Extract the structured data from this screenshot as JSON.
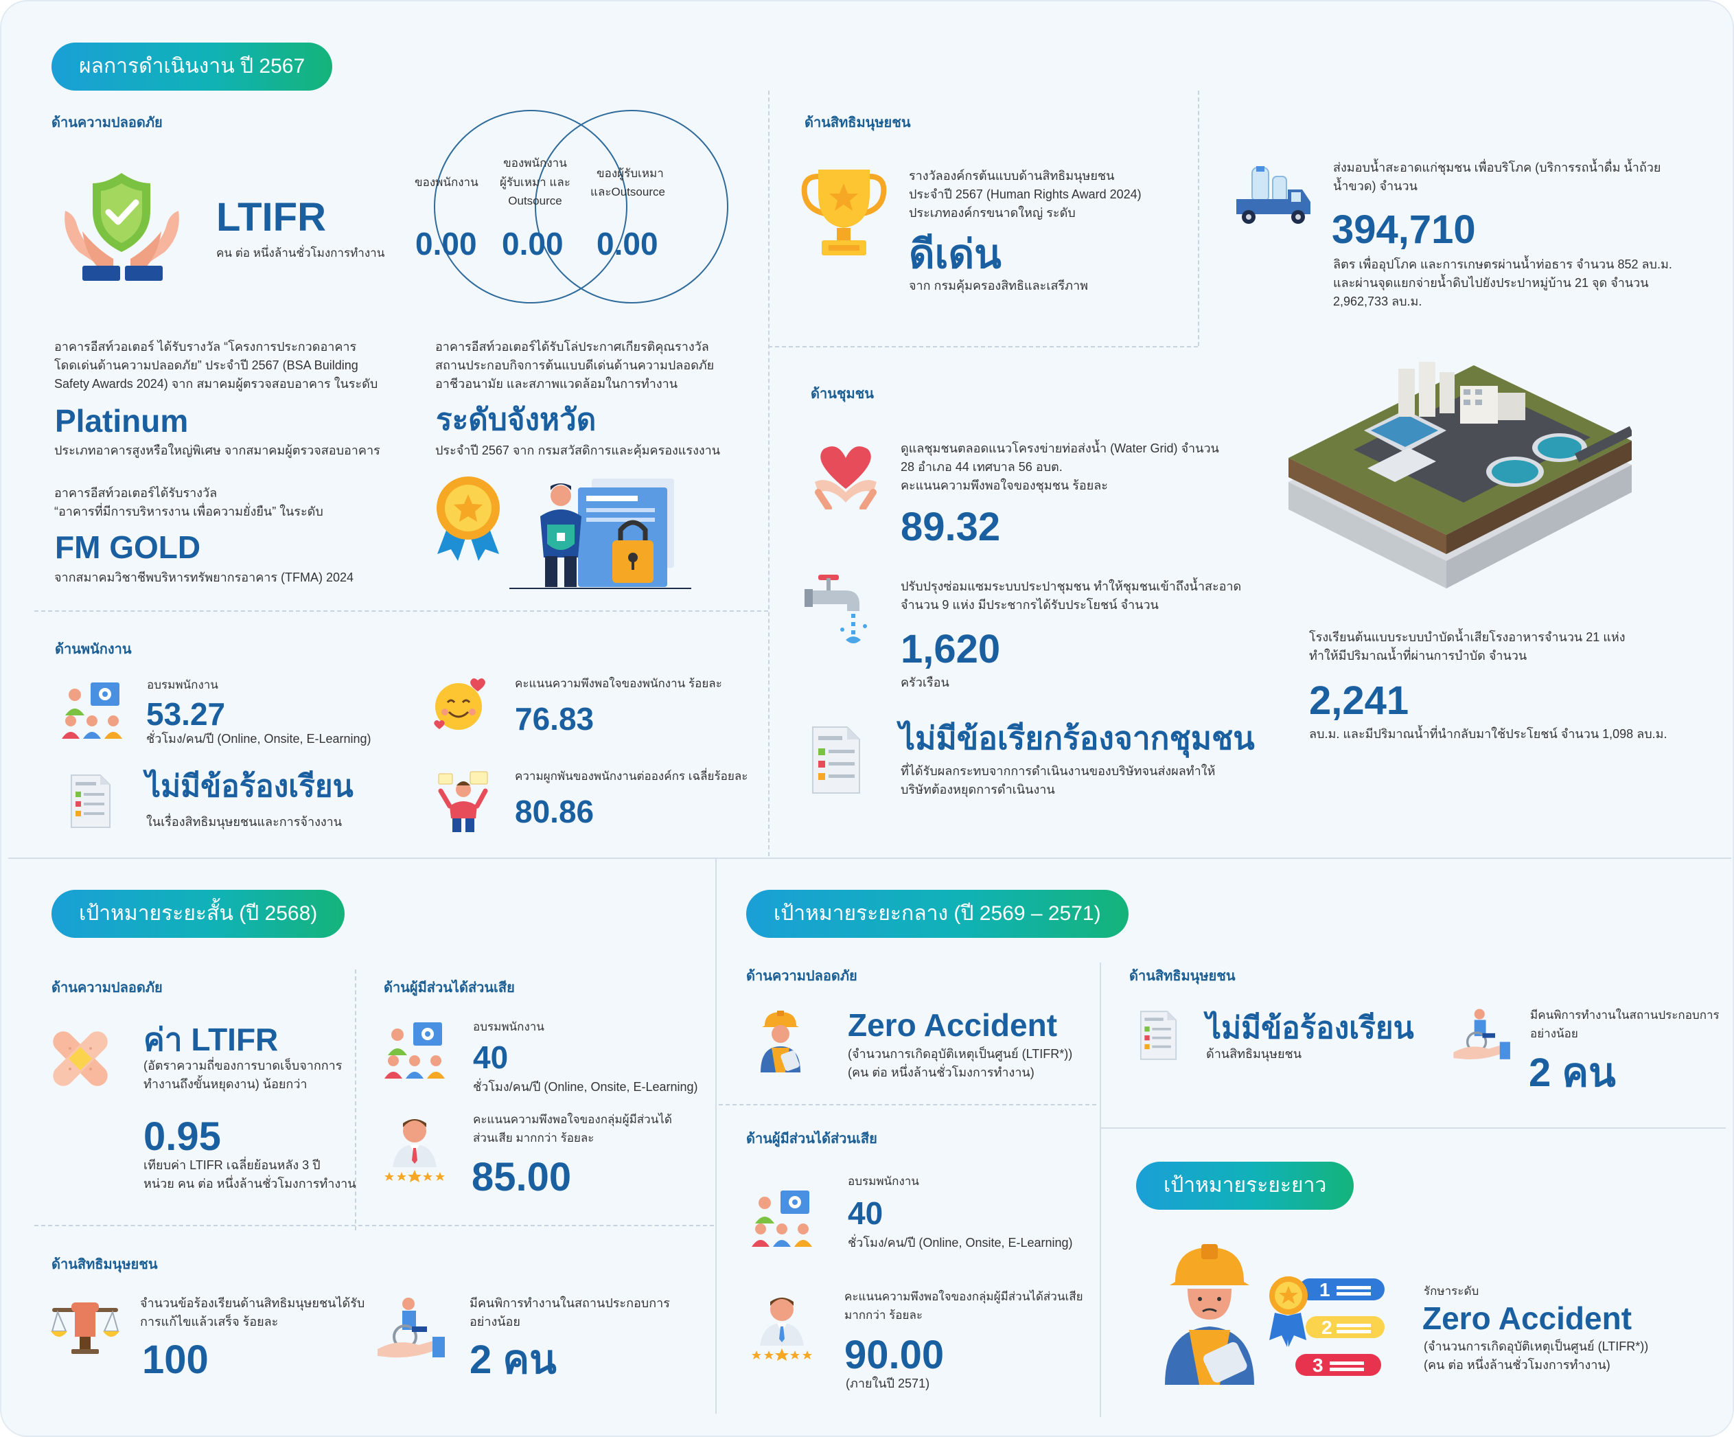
{
  "performance": {
    "title": "ผลการดำเนินงาน ปี 2567",
    "safety": {
      "heading": "ด้านความปลอดภัย",
      "ltifr_label": "LTIFR",
      "ltifr_unit": "คน ต่อ หนึ่งล้านชั่วโมงการทำงาน",
      "venn": {
        "left_label": "ของพนักงาน",
        "mid_label_1": "ของพนักงาน",
        "mid_label_2": "ผู้รับเหมา และ",
        "mid_label_3": "Outsource",
        "right_label_1": "ของผู้รับเหมา",
        "right_label_2": "และOutsource",
        "left_value": "0.00",
        "mid_value": "0.00",
        "right_value": "0.00"
      },
      "award1_desc_1": "อาคารอีสท์วอเตอร์ ได้รับรางวัล “โครงการประกวดอาคาร",
      "award1_desc_2": "โดดเด่นด้านความปลอดภัย” ประจำปี 2567 (BSA Building",
      "award1_desc_3": "Safety Awards 2024) จาก สมาคมผู้ตรวจสอบอาคาร ในระดับ",
      "award1_level": "Platinum",
      "award1_note": "ประเภทอาคารสูงหรือใหญ่พิเศษ จากสมาคมผู้ตรวจสอบอาคาร",
      "award2_desc_1": "อาคารอีสท์วอเตอร์ได้รับรางวัล",
      "award2_desc_2": "“อาคารที่มีการบริหารงาน เพื่อความยั่งยืน” ในระดับ",
      "award2_level": "FM GOLD",
      "award2_note": "จากสมาคมวิชาชีพบริหารทรัพยากรอาคาร (TFMA) 2024",
      "award3_desc_1": "อาคารอีสท์วอเตอร์ได้รับโล่ประกาศเกียรติคุณรางวัล",
      "award3_desc_2": "สถานประกอบกิจการต้นแบบดีเด่นด้านความปลอดภัย",
      "award3_desc_3": "อาชีวอนามัย และสภาพแวดล้อมในการทำงาน",
      "award3_level": "ระดับจังหวัด",
      "award3_note": "ประจำปี 2567 จาก กรมสวัสดิการและคุ้มครองแรงงาน"
    },
    "employee": {
      "heading": "ด้านพนักงาน",
      "training_label": "อบรมพนักงาน",
      "training_value": "53.27",
      "training_unit": "ชั่วโมง/คน/ปี (Online, Onsite, E-Learning)",
      "satisfaction_label": "คะแนนความพึงพอใจของพนักงาน ร้อยละ",
      "satisfaction_value": "76.83",
      "no_complaint": "ไม่มีข้อร้องเรียน",
      "no_complaint_note": "ในเรื่องสิทธิมนุษยชนและการจ้างงาน",
      "engagement_label": "ความผูกพันของพนักงานต่อองค์กร เฉลี่ยร้อยละ",
      "engagement_value": "80.86"
    },
    "human_rights": {
      "heading": "ด้านสิทธิมนุษยชน",
      "desc_1": "รางวัลองค์กรต้นแบบด้านสิทธิมนุษยชน",
      "desc_2": "ประจำปี 2567 (Human Rights Award 2024)",
      "desc_3": "ประเภทองค์กรขนาดใหญ่ ระดับ",
      "level": "ดีเด่น",
      "note": "จาก กรมคุ้มครองสิทธิและเสรีภาพ"
    },
    "water_delivery": {
      "desc_1": "ส่งมอบน้ำสะอาดแก่ชุมชน เพื่อบริโภค (บริการรถน้ำดื่ม น้ำถ้วย",
      "desc_2": "น้ำขวด) จำนวน",
      "value": "394,710",
      "note_1": "ลิตร เพื่ออุปโภค และการเกษตรผ่านน้ำท่อธาร จำนวน 852 ลบ.ม.",
      "note_2": "และผ่านจุดแยกจ่ายน้ำดิบไปยังประปาหมู่บ้าน 21 จุด  จำนวน",
      "note_3": "2,962,733 ลบ.ม."
    },
    "community": {
      "heading": "ด้านชุมชน",
      "care_desc_1": "ดูแลชุมชนตลอดแนวโครงข่ายท่อส่งน้ำ (Water Grid) จำนวน",
      "care_desc_2": "28 อำเภอ 44 เทศบาล  56 อบต.",
      "care_desc_3": "คะแนนความพึงพอใจของชุมชน ร้อยละ",
      "care_value": "89.32",
      "repair_desc_1": "ปรับปรุงซ่อมแซมระบบประปาชุมชน ทำให้ชุมชนเข้าถึงน้ำสะอาด",
      "repair_desc_2": "จำนวน 9 แห่ง มีประชากรได้รับประโยชน์ จำนวน",
      "repair_value": "1,620",
      "repair_unit": "ครัวเรือน",
      "no_complaint": "ไม่มีข้อเรียกร้องจากชุมชน",
      "no_complaint_note_1": "ที่ได้รับผลกระทบจากการดำเนินงานของบริษัทจนส่งผลทำให้",
      "no_complaint_note_2": "บริษัทต้องหยุดการดำเนินงาน"
    },
    "wastewater": {
      "desc_1": "โรงเรียนต้นแบบระบบบำบัดน้ำเสียโรงอาหารจำนวน 21 แห่ง",
      "desc_2": "ทำให้มีปริมาณน้ำที่ผ่านการบำบัด จำนวน",
      "value": "2,241",
      "note": "ลบ.ม. และมีปริมาณน้ำที่นำกลับมาใช้ประโยชน์ จำนวน 1,098 ลบ.ม."
    }
  },
  "short_term": {
    "title": "เป้าหมายระยะสั้น (ปี 2568)",
    "safety": {
      "heading": "ด้านความปลอดภัย",
      "label": "ค่า LTIFR",
      "desc_1": "(อัตราความถี่ของการบาดเจ็บจากการ",
      "desc_2": "ทำงานถึงขั้นหยุดงาน) น้อยกว่า",
      "value": "0.95",
      "note_1": "เทียบค่า LTIFR เฉลี่ยย้อนหลัง 3 ปี",
      "note_2": "หน่วย คน ต่อ หนึ่งล้านชั่วโมงการทำงาน"
    },
    "stakeholder": {
      "heading": "ด้านผู้มีส่วนได้ส่วนเสีย",
      "training_label": "อบรมพนักงาน",
      "training_value": "40",
      "training_unit": "ชั่วโมง/คน/ปี (Online, Onsite, E-Learning)",
      "satisfaction_label_1": "คะแนนความพึงพอใจของกลุ่มผู้มีส่วนได้",
      "satisfaction_label_2": "ส่วนเสีย มากกว่า ร้อยละ",
      "satisfaction_value": "85.00"
    },
    "human_rights": {
      "heading": "ด้านสิทธิมนุษยชน",
      "complaint_desc_1": "จำนวนข้อร้องเรียนด้านสิทธิมนุษยชนได้รับ",
      "complaint_desc_2": "การแก้ไขแล้วเสร็จ ร้อยละ",
      "complaint_value": "100",
      "disability_desc_1": "มีคนพิการทำงานในสถานประกอบการ",
      "disability_desc_2": "อย่างน้อย",
      "disability_value": "2 คน"
    }
  },
  "mid_term": {
    "title": "เป้าหมายระยะกลาง (ปี 2569 – 2571)",
    "safety": {
      "heading": "ด้านความปลอดภัย",
      "label": "Zero Accident",
      "desc_1": "(จำนวนการเกิดอุบัติเหตุเป็นศูนย์ (LTIFR*))",
      "desc_2": "(คน ต่อ หนึ่งล้านชั่วโมงการทำงาน)"
    },
    "human_rights": {
      "heading": "ด้านสิทธิมนุษยชน",
      "no_complaint": "ไม่มีข้อร้องเรียน",
      "no_complaint_note": "ด้านสิทธิมนุษยชน",
      "disability_desc_1": "มีคนพิการทำงานในสถานประกอบการ",
      "disability_desc_2": "อย่างน้อย",
      "disability_value": "2 คน"
    },
    "stakeholder": {
      "heading": "ด้านผู้มีส่วนได้ส่วนเสีย",
      "training_label": "อบรมพนักงาน",
      "training_value": "40",
      "training_unit": "ชั่วโมง/คน/ปี (Online, Onsite, E-Learning)",
      "satisfaction_label_1": "คะแนนความพึงพอใจของกลุ่มผู้มีส่วนได้ส่วนเสีย",
      "satisfaction_label_2": "มากกว่า  ร้อยละ",
      "satisfaction_value": "90.00",
      "satisfaction_note": "(ภายในปี 2571)"
    }
  },
  "long_term": {
    "title": "เป้าหมายระยะยาว",
    "maintain_label": "รักษาระดับ",
    "label": "Zero Accident",
    "desc_1": "(จำนวนการเกิดอุบัติเหตุเป็นศูนย์ (LTIFR*))",
    "desc_2": "(คน ต่อ หนึ่งล้านชั่วโมงการทำงาน)",
    "list_numbers": [
      "1",
      "2",
      "3"
    ]
  },
  "colors": {
    "primary_blue": "#1a5fa0",
    "heading_blue": "#1b5e94",
    "pill_start": "#1a9fd6",
    "pill_end": "#15b37a",
    "background": "#f3f8fc"
  }
}
